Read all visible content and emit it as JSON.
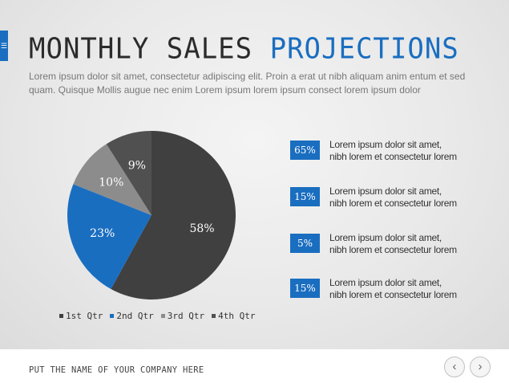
{
  "slide": {
    "title_part1": "MONTHLY SALES",
    "title_part2": "PROJECTIONS",
    "subtitle": "Lorem ipsum dolor sit amet, consectetur adipiscing elit. Proin a erat ut nibh aliquam anim entum et sed quam. Quisque Mollis augue  nec enim Lorem ipsum lorem ipsum consect lorem ipsum dolor",
    "edge_tab_icon": "menu-lines-icon"
  },
  "chart_data": {
    "type": "pie",
    "categories": [
      "1st Qtr",
      "2nd Qtr",
      "3rd Qtr",
      "4th Qtr"
    ],
    "values": [
      58,
      23,
      10,
      9
    ],
    "labels": [
      "58%",
      "23%",
      "10%",
      "9%"
    ],
    "colors": [
      "#404040",
      "#1a6ec0",
      "#8c8c8c",
      "#505050"
    ],
    "legend_position": "bottom"
  },
  "stats": [
    {
      "value": "65%",
      "text_line1": "Lorem ipsum dolor sit amet,",
      "text_line2": "nibh lorem et consectetur lorem"
    },
    {
      "value": "15%",
      "text_line1": "Lorem ipsum dolor sit amet,",
      "text_line2": "nibh lorem et consectetur lorem"
    },
    {
      "value": "5%",
      "text_line1": "Lorem ipsum dolor sit amet,",
      "text_line2": "nibh lorem et consectetur lorem"
    },
    {
      "value": "15%",
      "text_line1": "Lorem ipsum dolor sit amet,",
      "text_line2": "nibh lorem et consectetur lorem"
    }
  ],
  "footer": {
    "company": "PUT THE NAME OF YOUR COMPANY HERE",
    "prev_icon": "chevron-left-icon",
    "next_icon": "chevron-right-icon"
  },
  "theme": {
    "accent": "#1a6ec0"
  }
}
